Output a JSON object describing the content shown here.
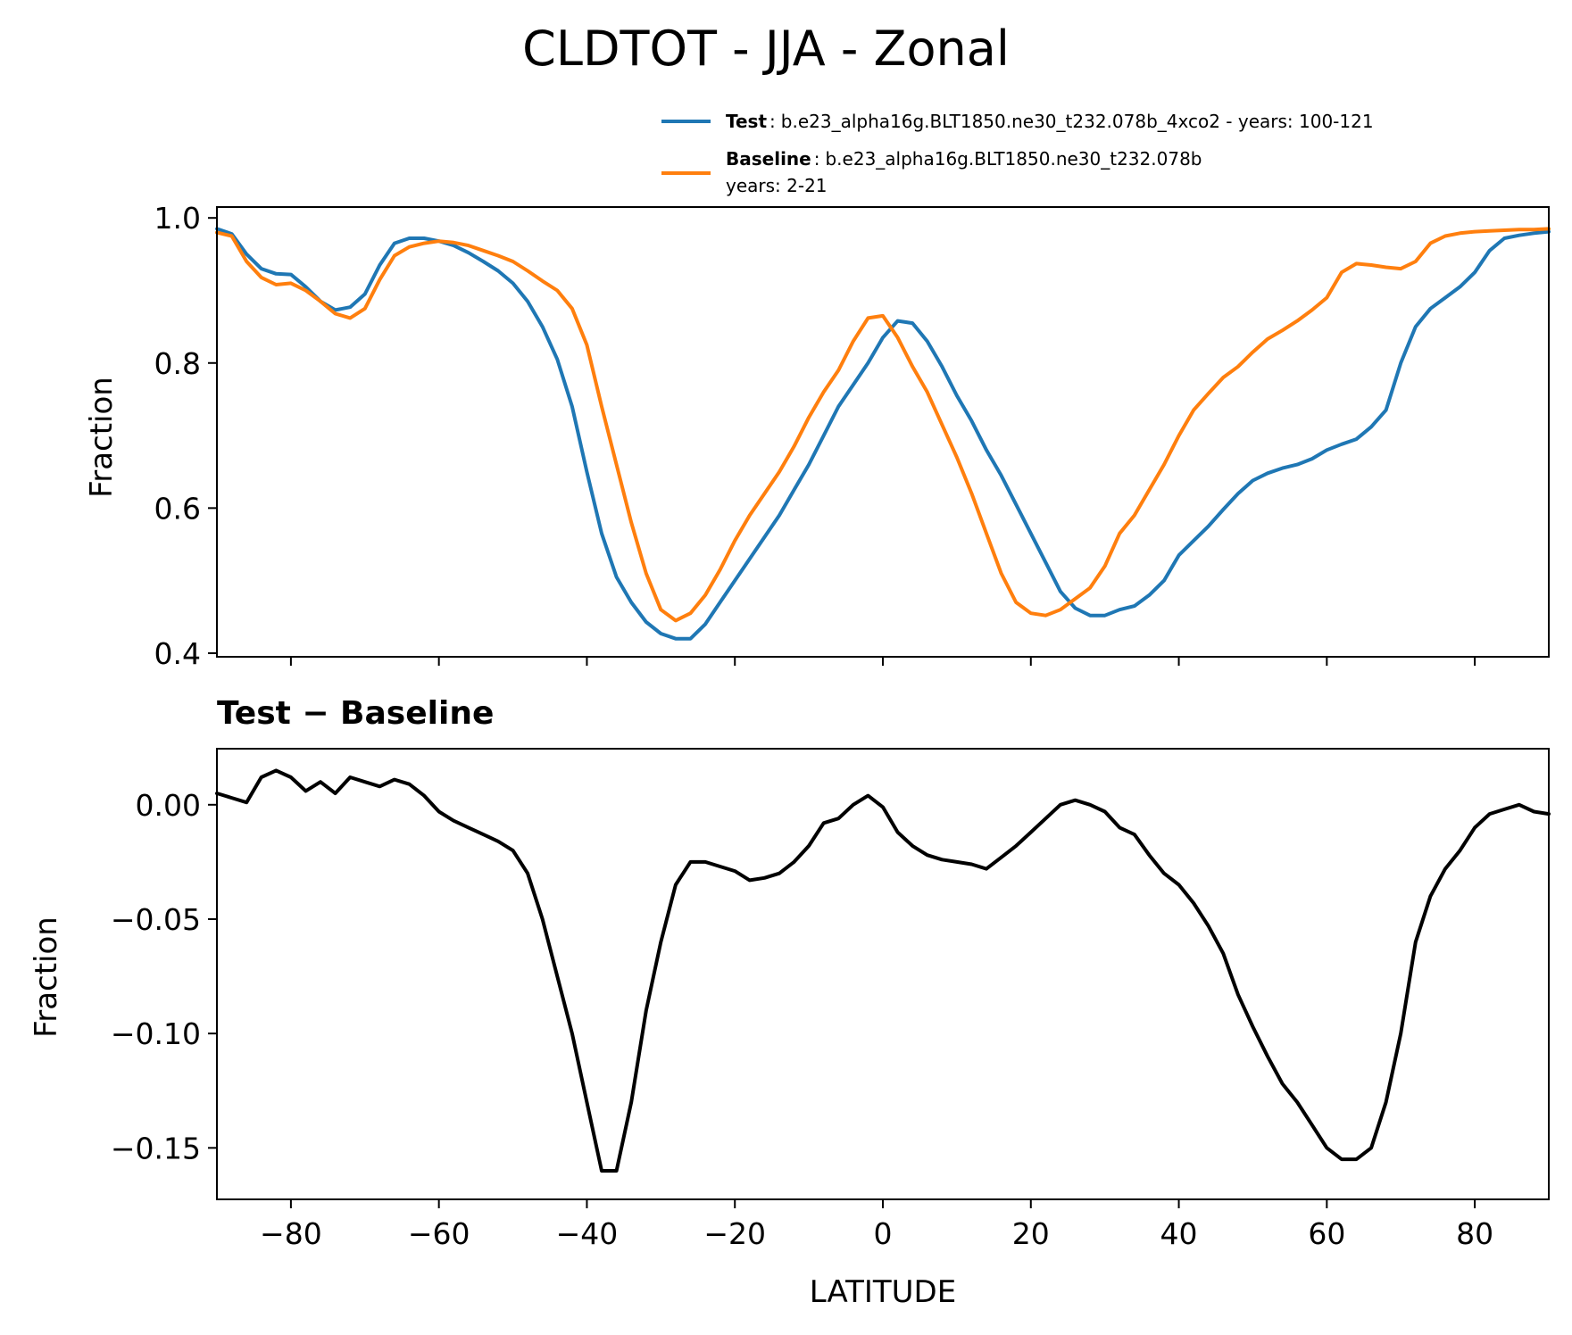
{
  "chart_data": [
    {
      "type": "line",
      "panel": "top",
      "title": "CLDTOT - JJA - Zonal",
      "xlabel": "",
      "ylabel": "Fraction",
      "xlim": [
        -90,
        90
      ],
      "ylim": [
        0.395,
        1.015
      ],
      "xticks": [
        -80,
        -60,
        -40,
        -20,
        0,
        20,
        40,
        60,
        80
      ],
      "yticks": [
        0.4,
        0.6,
        0.8,
        1.0
      ],
      "ytick_labels": [
        "0.4",
        "0.6",
        "0.8",
        "1.0"
      ],
      "grid": false,
      "legend_position": "top-right",
      "legend": [
        {
          "bold": "Test",
          "sep": ":",
          "text": "b.e23_alpha16g.BLT1850.ne30_t232.078b_4xco2 - years: 100-121",
          "text2": "",
          "color": "#1f77b4"
        },
        {
          "bold": "Baseline",
          "sep": ":",
          "text": "b.e23_alpha16g.BLT1850.ne30_t232.078b",
          "text2": "years: 2-21",
          "color": "#ff7f0e"
        }
      ],
      "series": [
        {
          "name": "Test",
          "color": "#1f77b4",
          "x": [
            -90,
            -88,
            -86,
            -84,
            -82,
            -80,
            -78,
            -76,
            -74,
            -72,
            -70,
            -68,
            -66,
            -64,
            -62,
            -60,
            -58,
            -56,
            -54,
            -52,
            -50,
            -48,
            -46,
            -44,
            -42,
            -40,
            -38,
            -36,
            -34,
            -32,
            -30,
            -28,
            -26,
            -24,
            -22,
            -20,
            -18,
            -16,
            -14,
            -12,
            -10,
            -8,
            -6,
            -4,
            -2,
            0,
            2,
            4,
            6,
            8,
            10,
            12,
            14,
            16,
            18,
            20,
            22,
            24,
            26,
            28,
            30,
            32,
            34,
            36,
            38,
            40,
            42,
            44,
            46,
            48,
            50,
            52,
            54,
            56,
            58,
            60,
            62,
            64,
            66,
            68,
            70,
            72,
            74,
            76,
            78,
            80,
            82,
            84,
            86,
            88,
            90
          ],
          "values": [
            0.985,
            0.978,
            0.95,
            0.93,
            0.923,
            0.922,
            0.905,
            0.885,
            0.873,
            0.877,
            0.895,
            0.935,
            0.965,
            0.972,
            0.972,
            0.968,
            0.962,
            0.952,
            0.94,
            0.927,
            0.91,
            0.885,
            0.85,
            0.805,
            0.74,
            0.65,
            0.565,
            0.505,
            0.47,
            0.443,
            0.427,
            0.42,
            0.42,
            0.44,
            0.47,
            0.5,
            0.53,
            0.56,
            0.59,
            0.625,
            0.66,
            0.7,
            0.74,
            0.77,
            0.8,
            0.835,
            0.858,
            0.855,
            0.83,
            0.795,
            0.755,
            0.72,
            0.68,
            0.645,
            0.605,
            0.565,
            0.525,
            0.485,
            0.462,
            0.452,
            0.452,
            0.46,
            0.465,
            0.48,
            0.5,
            0.535,
            0.555,
            0.575,
            0.598,
            0.62,
            0.638,
            0.648,
            0.655,
            0.66,
            0.668,
            0.68,
            0.688,
            0.695,
            0.712,
            0.735,
            0.8,
            0.85,
            0.875,
            0.89,
            0.905,
            0.925,
            0.955,
            0.972,
            0.976,
            0.979,
            0.981
          ]
        },
        {
          "name": "Baseline",
          "color": "#ff7f0e",
          "x": [
            -90,
            -88,
            -86,
            -84,
            -82,
            -80,
            -78,
            -76,
            -74,
            -72,
            -70,
            -68,
            -66,
            -64,
            -62,
            -60,
            -58,
            -56,
            -54,
            -52,
            -50,
            -48,
            -46,
            -44,
            -42,
            -40,
            -38,
            -36,
            -34,
            -32,
            -30,
            -28,
            -26,
            -24,
            -22,
            -20,
            -18,
            -16,
            -14,
            -12,
            -10,
            -8,
            -6,
            -4,
            -2,
            0,
            2,
            4,
            6,
            8,
            10,
            12,
            14,
            16,
            18,
            20,
            22,
            24,
            26,
            28,
            30,
            32,
            34,
            36,
            38,
            40,
            42,
            44,
            46,
            48,
            50,
            52,
            54,
            56,
            58,
            60,
            62,
            64,
            66,
            68,
            70,
            72,
            74,
            76,
            78,
            80,
            82,
            84,
            86,
            88,
            90
          ],
          "values": [
            0.98,
            0.975,
            0.94,
            0.918,
            0.908,
            0.91,
            0.9,
            0.885,
            0.868,
            0.862,
            0.875,
            0.915,
            0.948,
            0.96,
            0.965,
            0.968,
            0.966,
            0.962,
            0.955,
            0.948,
            0.94,
            0.927,
            0.913,
            0.9,
            0.875,
            0.825,
            0.74,
            0.66,
            0.58,
            0.51,
            0.46,
            0.445,
            0.455,
            0.48,
            0.515,
            0.555,
            0.59,
            0.62,
            0.65,
            0.685,
            0.725,
            0.76,
            0.79,
            0.83,
            0.862,
            0.865,
            0.835,
            0.795,
            0.76,
            0.715,
            0.67,
            0.62,
            0.565,
            0.51,
            0.47,
            0.455,
            0.452,
            0.46,
            0.475,
            0.49,
            0.52,
            0.565,
            0.59,
            0.625,
            0.66,
            0.7,
            0.735,
            0.758,
            0.78,
            0.795,
            0.815,
            0.833,
            0.845,
            0.858,
            0.873,
            0.89,
            0.925,
            0.937,
            0.935,
            0.932,
            0.93,
            0.94,
            0.965,
            0.975,
            0.979,
            0.981,
            0.982,
            0.983,
            0.984,
            0.984,
            0.985
          ]
        }
      ]
    },
    {
      "type": "line",
      "panel": "bottom",
      "title": "Test − Baseline",
      "xlabel": "LATITUDE",
      "ylabel": "Fraction",
      "xlim": [
        -90,
        90
      ],
      "ylim": [
        -0.1725,
        0.0245
      ],
      "xticks": [
        -80,
        -60,
        -40,
        -20,
        0,
        20,
        40,
        60,
        80
      ],
      "xtick_labels": [
        "−80",
        "−60",
        "−40",
        "−20",
        "0",
        "20",
        "40",
        "60",
        "80"
      ],
      "yticks": [
        0.0,
        -0.05,
        -0.1,
        -0.15
      ],
      "ytick_labels": [
        "0.00",
        "−0.05",
        "−0.10",
        "−0.15"
      ],
      "grid": false,
      "series": [
        {
          "name": "Test − Baseline",
          "color": "#000000",
          "x": [
            -90,
            -88,
            -86,
            -84,
            -82,
            -80,
            -78,
            -76,
            -74,
            -72,
            -70,
            -68,
            -66,
            -64,
            -62,
            -60,
            -58,
            -56,
            -54,
            -52,
            -50,
            -48,
            -46,
            -44,
            -42,
            -40,
            -38,
            -36,
            -34,
            -32,
            -30,
            -28,
            -26,
            -24,
            -22,
            -20,
            -18,
            -16,
            -14,
            -12,
            -10,
            -8,
            -6,
            -4,
            -2,
            0,
            2,
            4,
            6,
            8,
            10,
            12,
            14,
            16,
            18,
            20,
            22,
            24,
            26,
            28,
            30,
            32,
            34,
            36,
            38,
            40,
            42,
            44,
            46,
            48,
            50,
            52,
            54,
            56,
            58,
            60,
            62,
            64,
            66,
            68,
            70,
            72,
            74,
            76,
            78,
            80,
            82,
            84,
            86,
            88,
            90
          ],
          "values": [
            0.005,
            0.003,
            0.001,
            0.012,
            0.015,
            0.012,
            0.006,
            0.01,
            0.005,
            0.012,
            0.01,
            0.008,
            0.011,
            0.009,
            0.004,
            -0.003,
            -0.007,
            -0.01,
            -0.013,
            -0.016,
            -0.02,
            -0.03,
            -0.05,
            -0.075,
            -0.1,
            -0.13,
            -0.16,
            -0.16,
            -0.13,
            -0.09,
            -0.06,
            -0.035,
            -0.025,
            -0.025,
            -0.027,
            -0.029,
            -0.033,
            -0.032,
            -0.03,
            -0.025,
            -0.018,
            -0.008,
            -0.006,
            0.0,
            0.004,
            -0.001,
            -0.012,
            -0.018,
            -0.022,
            -0.024,
            -0.025,
            -0.026,
            -0.028,
            -0.023,
            -0.018,
            -0.012,
            -0.006,
            0.0,
            0.002,
            0.0,
            -0.003,
            -0.01,
            -0.013,
            -0.022,
            -0.03,
            -0.035,
            -0.043,
            -0.053,
            -0.065,
            -0.083,
            -0.097,
            -0.11,
            -0.122,
            -0.13,
            -0.14,
            -0.15,
            -0.155,
            -0.155,
            -0.15,
            -0.13,
            -0.1,
            -0.06,
            -0.04,
            -0.028,
            -0.02,
            -0.01,
            -0.004,
            -0.002,
            0.0,
            -0.003,
            -0.004
          ]
        }
      ]
    }
  ]
}
